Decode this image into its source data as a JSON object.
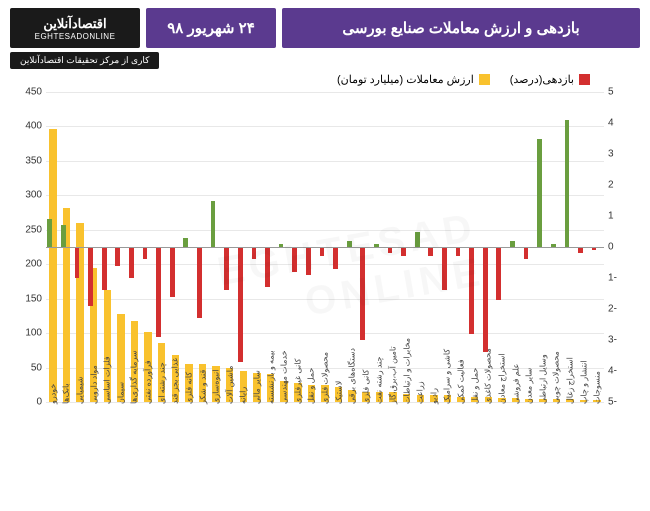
{
  "header": {
    "main_title": "بازدهی و ارزش معاملات صنایع بورسی",
    "date": "۲۴ شهریور ۹۸",
    "logo_top": "اقتصادآنلاین",
    "logo_sub": "EGHTESADONLINE",
    "subtitle": "کاری از مرکز تحقیقات اقتصادآنلاین"
  },
  "legend": {
    "return_label": "بازدهی(درصد)",
    "return_color": "#d32f2f",
    "txn_label": "ارزش معاملات (میلیارد تومان)",
    "txn_color": "#f9c22e"
  },
  "colors": {
    "positive": "#6a9e3f",
    "negative": "#d32f2f",
    "txn": "#f9c22e",
    "grid": "#e8e8e8",
    "bg": "#ffffff"
  },
  "axis_left": {
    "min": 0,
    "max": 450,
    "step": 50
  },
  "axis_right": {
    "min": -5,
    "max": 5,
    "step": 1
  },
  "categories": [
    {
      "label": "خودرو",
      "txn": 397,
      "ret": 0.9
    },
    {
      "label": "بانک‌ها",
      "txn": 282,
      "ret": 0.7
    },
    {
      "label": "شیمیایی",
      "txn": 260,
      "ret": -1.0
    },
    {
      "label": "مواد دارویی",
      "txn": 195,
      "ret": -1.9
    },
    {
      "label": "فلزات اساسی",
      "txn": 162,
      "ret": -1.4
    },
    {
      "label": "سیمان",
      "txn": 128,
      "ret": -0.6
    },
    {
      "label": "سرمایه گذاری‌ها",
      "txn": 118,
      "ret": -1.0
    },
    {
      "label": "فرآورده نفتی",
      "txn": 102,
      "ret": -0.4
    },
    {
      "label": "چند رشته ای",
      "txn": 85,
      "ret": -2.9
    },
    {
      "label": "غذایی بجز قند",
      "txn": 68,
      "ret": -1.6
    },
    {
      "label": "کانه فلزی",
      "txn": 55,
      "ret": 0.3
    },
    {
      "label": "قند و شکر",
      "txn": 55,
      "ret": -2.3
    },
    {
      "label": "انبوه‌سازی",
      "txn": 52,
      "ret": 1.5
    },
    {
      "label": "ماشین آلات",
      "txn": 50,
      "ret": -1.4
    },
    {
      "label": "رایانه",
      "txn": 45,
      "ret": -3.7
    },
    {
      "label": "سایر مالی",
      "txn": 42,
      "ret": -0.4
    },
    {
      "label": "بیمه و بازنشسته",
      "txn": 40,
      "ret": -1.3
    },
    {
      "label": "خدمات مهندسی",
      "txn": 30,
      "ret": 0.1
    },
    {
      "label": "کانی غیرفلزی",
      "txn": 28,
      "ret": -0.8
    },
    {
      "label": "حمل و نقل",
      "txn": 25,
      "ret": -0.9
    },
    {
      "label": "محصولات فلزی",
      "txn": 25,
      "ret": -0.3
    },
    {
      "label": "لاستیک",
      "txn": 22,
      "ret": -0.7
    },
    {
      "label": "دستگاه‌های برقی",
      "txn": 18,
      "ret": 0.2
    },
    {
      "label": "کانی فلزی",
      "txn": 15,
      "ret": -3.0
    },
    {
      "label": "چند رشته نفت",
      "txn": 15,
      "ret": 0.1
    },
    {
      "label": "تامین آب،برق،گاز",
      "txn": 15,
      "ret": -0.2
    },
    {
      "label": "مخابرات و ارتباطات",
      "txn": 12,
      "ret": -0.3
    },
    {
      "label": "زراعت",
      "txn": 10,
      "ret": 0.5
    },
    {
      "label": "رادیو",
      "txn": 10,
      "ret": -0.3
    },
    {
      "label": "کاشی و سرامیک",
      "txn": 10,
      "ret": -1.4
    },
    {
      "label": "فعالیت کمکی",
      "txn": 8,
      "ret": -0.3
    },
    {
      "label": "حمل و نقل",
      "txn": 8,
      "ret": -2.8
    },
    {
      "label": "محصولات کاغذی",
      "txn": 7,
      "ret": -3.4
    },
    {
      "label": "استخراج معادن",
      "txn": 6,
      "ret": -1.7
    },
    {
      "label": "علم فروشی",
      "txn": 6,
      "ret": 0.2
    },
    {
      "label": "سایر معدن",
      "txn": 5,
      "ret": -0.4
    },
    {
      "label": "وسایل ارتباطی",
      "txn": 5,
      "ret": 3.5
    },
    {
      "label": "محصولات چوبی",
      "txn": 4,
      "ret": 0.1
    },
    {
      "label": "استخراج زغال",
      "txn": 4,
      "ret": 4.1
    },
    {
      "label": "انتشار و چاپ",
      "txn": 3,
      "ret": -0.2
    },
    {
      "label": "منسوجات",
      "txn": 3,
      "ret": -0.1
    }
  ],
  "watermark": "EGHTESAD ONLINE"
}
